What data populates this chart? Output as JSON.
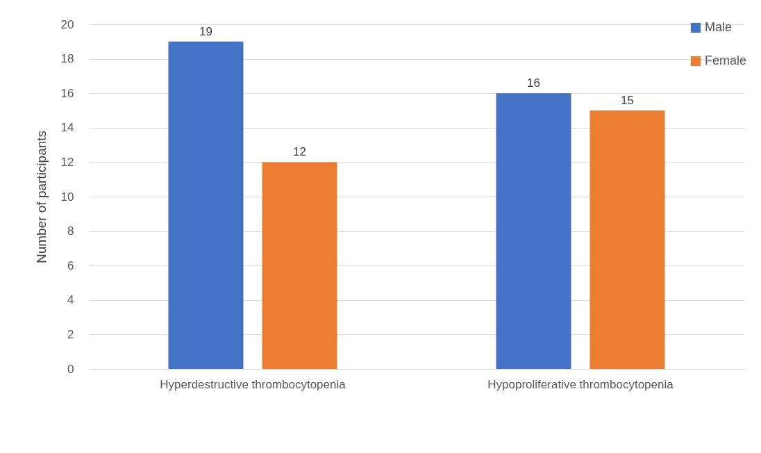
{
  "chart_data": {
    "type": "bar",
    "ylabel": "Number of participants",
    "categories": [
      "Hyperdestructive thrombocytopenia",
      "Hypoproliferative thrombocytopenia"
    ],
    "series": [
      {
        "name": "Male",
        "color": "#4472c4",
        "values": [
          19,
          16
        ]
      },
      {
        "name": "Female",
        "color": "#ed7d31",
        "values": [
          12,
          15
        ]
      }
    ],
    "ylim": [
      0,
      20
    ],
    "yticks": [
      0,
      2,
      4,
      6,
      8,
      10,
      12,
      14,
      16,
      18,
      20
    ],
    "grid": "y",
    "legend": "top right",
    "data_labels": true
  }
}
